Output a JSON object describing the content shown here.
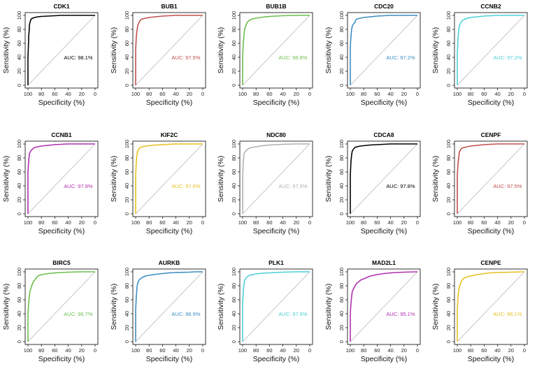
{
  "chart_data": [
    {
      "type": "line",
      "title": "CDK1",
      "color": "#000000",
      "auc_text": "AUC: 98.1%",
      "xlabel": "Specificity (%)",
      "ylabel": "Sensitivity (%)",
      "xlim": [
        100,
        0
      ],
      "ylim": [
        0,
        100
      ],
      "xticks": [
        100,
        80,
        60,
        40,
        20,
        0
      ],
      "yticks": [
        0,
        20,
        40,
        60,
        80,
        100
      ],
      "reference_line": true,
      "x": [
        100,
        100,
        99,
        99,
        98,
        98,
        97,
        96,
        95,
        93,
        90,
        85,
        80,
        70,
        60,
        50,
        40,
        20,
        0
      ],
      "y": [
        0,
        40,
        65,
        70,
        80,
        85,
        90,
        93,
        95,
        96,
        97,
        98,
        98.5,
        99,
        99.5,
        100,
        100,
        100,
        100
      ]
    },
    {
      "type": "line",
      "title": "BUB1",
      "color": "#c0504d",
      "auc_text": "AUC: 97.5%",
      "xlabel": "Specificity (%)",
      "ylabel": "Sensitivity (%)",
      "xlim": [
        100,
        0
      ],
      "ylim": [
        0,
        100
      ],
      "xticks": [
        100,
        80,
        60,
        40,
        20,
        0
      ],
      "yticks": [
        0,
        20,
        40,
        60,
        80,
        100
      ],
      "reference_line": true,
      "x": [
        100,
        100,
        99,
        98,
        97,
        95,
        93,
        90,
        85,
        80,
        75,
        70,
        60,
        50,
        40,
        20,
        0
      ],
      "y": [
        0,
        50,
        70,
        78,
        85,
        90,
        93,
        95,
        96,
        97,
        97.5,
        98,
        99,
        99.5,
        100,
        100,
        100
      ]
    },
    {
      "type": "line",
      "title": "BUB1B",
      "color": "#6abf4b",
      "auc_text": "AUC: 96.8%",
      "xlabel": "Specificity (%)",
      "ylabel": "Sensitivity (%)",
      "xlim": [
        100,
        0
      ],
      "ylim": [
        0,
        100
      ],
      "xticks": [
        100,
        80,
        60,
        40,
        20,
        0
      ],
      "yticks": [
        0,
        20,
        40,
        60,
        80,
        100
      ],
      "reference_line": true,
      "x": [
        100,
        100,
        99,
        98,
        97,
        95,
        93,
        90,
        85,
        80,
        70,
        60,
        50,
        40,
        20,
        0
      ],
      "y": [
        0,
        40,
        60,
        72,
        80,
        86,
        90,
        93,
        95,
        96,
        97.5,
        98.5,
        99,
        99.5,
        100,
        100
      ]
    },
    {
      "type": "line",
      "title": "CDC20",
      "color": "#3c8dc4",
      "auc_text": "AUC: 97.2%",
      "xlabel": "Specificity (%)",
      "ylabel": "Sensitivity (%)",
      "xlim": [
        100,
        0
      ],
      "ylim": [
        0,
        100
      ],
      "xticks": [
        100,
        80,
        60,
        40,
        20,
        0
      ],
      "yticks": [
        0,
        20,
        40,
        60,
        80,
        100
      ],
      "reference_line": true,
      "x": [
        100,
        100,
        99,
        98,
        97,
        95,
        93,
        92,
        90,
        85,
        80,
        70,
        60,
        50,
        40,
        20,
        0
      ],
      "y": [
        0,
        55,
        70,
        80,
        85,
        88,
        90,
        93,
        95,
        96,
        97,
        98,
        99,
        99.5,
        100,
        100,
        100
      ]
    },
    {
      "type": "line",
      "title": "CCNB2",
      "color": "#4dd0d8",
      "auc_text": "AUC: 97.2%",
      "xlabel": "Specificity (%)",
      "ylabel": "Sensitivity (%)",
      "xlim": [
        100,
        0
      ],
      "ylim": [
        0,
        100
      ],
      "xticks": [
        100,
        80,
        60,
        40,
        20,
        0
      ],
      "yticks": [
        0,
        20,
        40,
        60,
        80,
        100
      ],
      "reference_line": true,
      "x": [
        100,
        100,
        99,
        98,
        97,
        95,
        93,
        90,
        85,
        80,
        70,
        60,
        50,
        40,
        20,
        0
      ],
      "y": [
        0,
        45,
        65,
        78,
        85,
        89,
        92,
        94,
        96,
        97,
        98,
        99,
        99.5,
        100,
        100,
        100
      ]
    },
    {
      "type": "line",
      "title": "CCNB1",
      "color": "#b030b0",
      "auc_text": "AUC: 97.9%",
      "xlabel": "Specificity (%)",
      "ylabel": "Sensitivity (%)",
      "xlim": [
        100,
        0
      ],
      "ylim": [
        0,
        100
      ],
      "xticks": [
        100,
        80,
        60,
        40,
        20,
        0
      ],
      "yticks": [
        0,
        20,
        40,
        60,
        80,
        100
      ],
      "reference_line": true,
      "x": [
        100,
        100,
        99,
        98,
        97,
        95,
        93,
        90,
        85,
        80,
        70,
        60,
        50,
        40,
        20,
        0
      ],
      "y": [
        0,
        60,
        75,
        85,
        88,
        91,
        93,
        95,
        96,
        97,
        98,
        99,
        99.5,
        100,
        100,
        100
      ]
    },
    {
      "type": "line",
      "title": "KIF2C",
      "color": "#e8c020",
      "auc_text": "AUC: 97.6%",
      "xlabel": "Specificity (%)",
      "ylabel": "Sensitivity (%)",
      "xlim": [
        100,
        0
      ],
      "ylim": [
        0,
        100
      ],
      "xticks": [
        100,
        80,
        60,
        40,
        20,
        0
      ],
      "yticks": [
        0,
        20,
        40,
        60,
        80,
        100
      ],
      "reference_line": true,
      "x": [
        100,
        100,
        99,
        98,
        97,
        95,
        93,
        90,
        85,
        80,
        70,
        60,
        50,
        40,
        20,
        0
      ],
      "y": [
        0,
        55,
        75,
        85,
        90,
        93,
        95,
        96,
        97,
        97.5,
        98.5,
        99,
        99.5,
        100,
        100,
        100
      ]
    },
    {
      "type": "line",
      "title": "NDC80",
      "color": "#b0b0b0",
      "auc_text": "AUC: 97.5%",
      "xlabel": "Specificity (%)",
      "ylabel": "Sensitivity (%)",
      "xlim": [
        100,
        0
      ],
      "ylim": [
        0,
        100
      ],
      "xticks": [
        100,
        80,
        60,
        40,
        20,
        0
      ],
      "yticks": [
        0,
        20,
        40,
        60,
        80,
        100
      ],
      "reference_line": true,
      "x": [
        100,
        100,
        99,
        98,
        97,
        95,
        93,
        90,
        85,
        80,
        70,
        60,
        50,
        40,
        20,
        0
      ],
      "y": [
        0,
        50,
        75,
        85,
        88,
        90,
        92,
        94,
        95,
        96,
        97.5,
        98.5,
        99,
        99.5,
        100,
        100
      ]
    },
    {
      "type": "line",
      "title": "CDCA8",
      "color": "#000000",
      "auc_text": "AUC: 97.8%",
      "xlabel": "Specificity (%)",
      "ylabel": "Sensitivity (%)",
      "xlim": [
        100,
        0
      ],
      "ylim": [
        0,
        100
      ],
      "xticks": [
        100,
        80,
        60,
        40,
        20,
        0
      ],
      "yticks": [
        0,
        20,
        40,
        60,
        80,
        100
      ],
      "reference_line": true,
      "x": [
        100,
        100,
        99,
        98,
        97,
        95,
        93,
        90,
        85,
        80,
        70,
        60,
        50,
        40,
        20,
        0
      ],
      "y": [
        0,
        55,
        75,
        85,
        90,
        93,
        95,
        96,
        97,
        97.5,
        98.5,
        99,
        99.5,
        100,
        100,
        100
      ]
    },
    {
      "type": "line",
      "title": "CENPF",
      "color": "#c0504d",
      "auc_text": "AUC: 97.5%",
      "xlabel": "Specificity (%)",
      "ylabel": "Sensitivity (%)",
      "xlim": [
        100,
        0
      ],
      "ylim": [
        0,
        100
      ],
      "xticks": [
        100,
        80,
        60,
        40,
        20,
        0
      ],
      "yticks": [
        0,
        20,
        40,
        60,
        80,
        100
      ],
      "reference_line": true,
      "x": [
        100,
        100,
        99,
        98,
        97,
        95,
        93,
        90,
        85,
        80,
        70,
        60,
        50,
        40,
        20,
        0
      ],
      "y": [
        0,
        55,
        70,
        80,
        88,
        92,
        94,
        95,
        96,
        97,
        98,
        99,
        99.5,
        100,
        100,
        100
      ]
    },
    {
      "type": "line",
      "title": "BIRC5",
      "color": "#6abf4b",
      "auc_text": "AUC: 96.7%",
      "xlabel": "Specificity (%)",
      "ylabel": "Sensitivity (%)",
      "xlim": [
        100,
        0
      ],
      "ylim": [
        0,
        100
      ],
      "xticks": [
        100,
        80,
        60,
        40,
        20,
        0
      ],
      "yticks": [
        0,
        20,
        40,
        60,
        80,
        100
      ],
      "reference_line": true,
      "x": [
        100,
        100,
        99,
        98,
        97,
        95,
        93,
        90,
        87,
        85,
        80,
        70,
        60,
        50,
        40,
        20,
        0
      ],
      "y": [
        0,
        40,
        55,
        65,
        72,
        78,
        84,
        88,
        92,
        94,
        96,
        97.5,
        98.5,
        99,
        99.5,
        100,
        100
      ]
    },
    {
      "type": "line",
      "title": "AURKB",
      "color": "#3c8dc4",
      "auc_text": "AUC: 96.9%",
      "xlabel": "Specificity (%)",
      "ylabel": "Sensitivity (%)",
      "xlim": [
        100,
        0
      ],
      "ylim": [
        0,
        100
      ],
      "xticks": [
        100,
        80,
        60,
        40,
        20,
        0
      ],
      "yticks": [
        0,
        20,
        40,
        60,
        80,
        100
      ],
      "reference_line": true,
      "x": [
        100,
        100,
        99,
        98,
        97,
        95,
        93,
        90,
        85,
        80,
        70,
        60,
        50,
        40,
        20,
        10,
        0
      ],
      "y": [
        0,
        45,
        65,
        78,
        84,
        88,
        90,
        92,
        94,
        95,
        96.5,
        97.5,
        98.5,
        99,
        99.5,
        100,
        100
      ]
    },
    {
      "type": "line",
      "title": "PLK1",
      "color": "#4dd0d8",
      "auc_text": "AUC: 97.9%",
      "xlabel": "Specificity (%)",
      "ylabel": "Sensitivity (%)",
      "xlim": [
        100,
        0
      ],
      "ylim": [
        0,
        100
      ],
      "xticks": [
        100,
        80,
        60,
        40,
        20,
        0
      ],
      "yticks": [
        0,
        20,
        40,
        60,
        80,
        100
      ],
      "reference_line": true,
      "x": [
        100,
        100,
        99,
        98,
        97,
        95,
        93,
        90,
        85,
        80,
        70,
        60,
        50,
        40,
        20,
        0
      ],
      "y": [
        0,
        55,
        72,
        82,
        88,
        91,
        93,
        95,
        96,
        97,
        98,
        98.5,
        99,
        99.5,
        100,
        100
      ]
    },
    {
      "type": "line",
      "title": "MAD2L1",
      "color": "#b030b0",
      "auc_text": "AUC: 95.1%",
      "xlabel": "Specificity (%)",
      "ylabel": "Sensitivity (%)",
      "xlim": [
        100,
        0
      ],
      "ylim": [
        0,
        100
      ],
      "xticks": [
        100,
        80,
        60,
        40,
        20,
        0
      ],
      "yticks": [
        0,
        20,
        40,
        60,
        80,
        100
      ],
      "reference_line": true,
      "x": [
        100,
        100,
        99,
        98,
        97,
        95,
        93,
        90,
        87,
        85,
        80,
        75,
        70,
        60,
        50,
        40,
        20,
        0
      ],
      "y": [
        0,
        40,
        55,
        65,
        72,
        76,
        80,
        84,
        86,
        88,
        90,
        92,
        94,
        96,
        97.5,
        98.5,
        99.5,
        100
      ]
    },
    {
      "type": "line",
      "title": "CENPE",
      "color": "#e8c020",
      "auc_text": "AUC: 96.1%",
      "xlabel": "Specificity (%)",
      "ylabel": "Sensitivity (%)",
      "xlim": [
        100,
        0
      ],
      "ylim": [
        0,
        100
      ],
      "xticks": [
        100,
        80,
        60,
        40,
        20,
        0
      ],
      "yticks": [
        0,
        20,
        40,
        60,
        80,
        100
      ],
      "reference_line": true,
      "x": [
        100,
        100,
        99,
        98,
        97,
        95,
        93,
        90,
        85,
        80,
        70,
        60,
        50,
        40,
        20,
        0
      ],
      "y": [
        0,
        45,
        62,
        72,
        78,
        84,
        88,
        91,
        93,
        94,
        96,
        97.5,
        98.5,
        99,
        99.5,
        100
      ]
    }
  ]
}
